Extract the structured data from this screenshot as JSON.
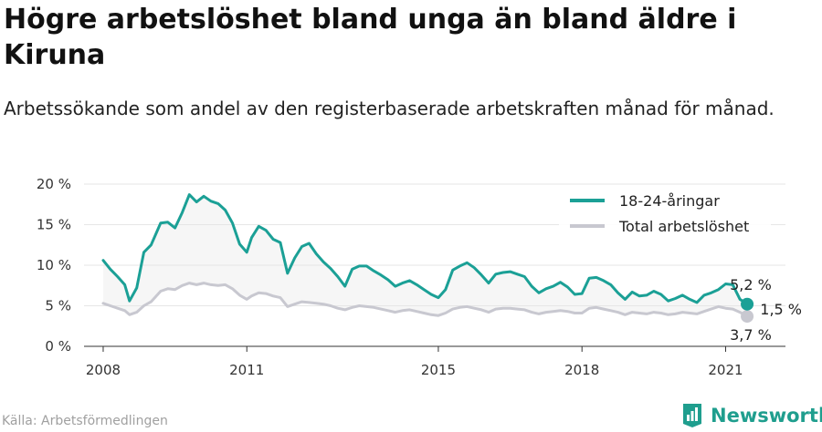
{
  "title": "Högre arbetslöshet bland unga än bland äldre i Kiruna",
  "subtitle": "Arbetssökande som andel av den registerbaserade arbetskraften månad för månad.",
  "source": "Källa: Arbetsförmedlingen",
  "brand": {
    "name": "Newsworthy",
    "icon": "newsworthy-logo-icon",
    "color": "#1f9e8e"
  },
  "chart_data": {
    "type": "line",
    "x_ticks": [
      "2008",
      "2011",
      "2015",
      "2018",
      "2021"
    ],
    "y_ticks": [
      "0 %",
      "5 %",
      "10 %",
      "15 %",
      "20 %"
    ],
    "xlim": [
      2007.6,
      2022.25
    ],
    "ylim": [
      0,
      20
    ],
    "grid": "horizontal",
    "legend_position": "top-right",
    "series": [
      {
        "name": "18-24-åringar",
        "color": "#1ba096",
        "end_label": "5,2 %",
        "points": [
          [
            2008.0,
            10.6
          ],
          [
            2008.15,
            9.5
          ],
          [
            2008.3,
            8.6
          ],
          [
            2008.45,
            7.6
          ],
          [
            2008.55,
            5.6
          ],
          [
            2008.7,
            7.2
          ],
          [
            2008.85,
            11.6
          ],
          [
            2009.0,
            12.5
          ],
          [
            2009.2,
            15.2
          ],
          [
            2009.35,
            15.3
          ],
          [
            2009.5,
            14.6
          ],
          [
            2009.65,
            16.5
          ],
          [
            2009.8,
            18.7
          ],
          [
            2009.95,
            17.8
          ],
          [
            2010.1,
            18.5
          ],
          [
            2010.25,
            17.9
          ],
          [
            2010.4,
            17.6
          ],
          [
            2010.55,
            16.8
          ],
          [
            2010.7,
            15.2
          ],
          [
            2010.85,
            12.6
          ],
          [
            2011.0,
            11.6
          ],
          [
            2011.1,
            13.4
          ],
          [
            2011.25,
            14.8
          ],
          [
            2011.4,
            14.3
          ],
          [
            2011.55,
            13.2
          ],
          [
            2011.7,
            12.8
          ],
          [
            2011.85,
            9.0
          ],
          [
            2012.0,
            10.9
          ],
          [
            2012.15,
            12.3
          ],
          [
            2012.3,
            12.7
          ],
          [
            2012.45,
            11.4
          ],
          [
            2012.6,
            10.4
          ],
          [
            2012.75,
            9.6
          ],
          [
            2012.9,
            8.6
          ],
          [
            2013.05,
            7.4
          ],
          [
            2013.2,
            9.5
          ],
          [
            2013.35,
            9.9
          ],
          [
            2013.5,
            9.9
          ],
          [
            2013.65,
            9.3
          ],
          [
            2013.8,
            8.8
          ],
          [
            2013.95,
            8.2
          ],
          [
            2014.1,
            7.4
          ],
          [
            2014.25,
            7.8
          ],
          [
            2014.4,
            8.1
          ],
          [
            2014.55,
            7.6
          ],
          [
            2014.7,
            7.0
          ],
          [
            2014.85,
            6.4
          ],
          [
            2015.0,
            6.0
          ],
          [
            2015.15,
            7.0
          ],
          [
            2015.3,
            9.4
          ],
          [
            2015.45,
            9.9
          ],
          [
            2015.6,
            10.3
          ],
          [
            2015.75,
            9.7
          ],
          [
            2015.9,
            8.8
          ],
          [
            2016.05,
            7.8
          ],
          [
            2016.2,
            8.9
          ],
          [
            2016.35,
            9.1
          ],
          [
            2016.5,
            9.2
          ],
          [
            2016.65,
            8.9
          ],
          [
            2016.8,
            8.6
          ],
          [
            2016.95,
            7.4
          ],
          [
            2017.1,
            6.6
          ],
          [
            2017.25,
            7.1
          ],
          [
            2017.4,
            7.4
          ],
          [
            2017.55,
            7.9
          ],
          [
            2017.7,
            7.3
          ],
          [
            2017.85,
            6.4
          ],
          [
            2018.0,
            6.5
          ],
          [
            2018.15,
            8.4
          ],
          [
            2018.3,
            8.5
          ],
          [
            2018.45,
            8.1
          ],
          [
            2018.6,
            7.6
          ],
          [
            2018.75,
            6.6
          ],
          [
            2018.9,
            5.8
          ],
          [
            2019.05,
            6.7
          ],
          [
            2019.2,
            6.2
          ],
          [
            2019.35,
            6.3
          ],
          [
            2019.5,
            6.8
          ],
          [
            2019.65,
            6.4
          ],
          [
            2019.8,
            5.6
          ],
          [
            2019.95,
            5.9
          ],
          [
            2020.1,
            6.3
          ],
          [
            2020.25,
            5.8
          ],
          [
            2020.4,
            5.4
          ],
          [
            2020.55,
            6.3
          ],
          [
            2020.7,
            6.6
          ],
          [
            2020.85,
            7.0
          ],
          [
            2021.0,
            7.7
          ],
          [
            2021.15,
            7.6
          ],
          [
            2021.3,
            5.8
          ],
          [
            2021.45,
            5.2
          ]
        ]
      },
      {
        "name": "Total arbetslöshet",
        "color": "#c8c8d0",
        "end_label": "3,7 %",
        "points": [
          [
            2008.0,
            5.3
          ],
          [
            2008.15,
            5.0
          ],
          [
            2008.3,
            4.7
          ],
          [
            2008.45,
            4.4
          ],
          [
            2008.55,
            3.9
          ],
          [
            2008.7,
            4.2
          ],
          [
            2008.85,
            5.0
          ],
          [
            2009.0,
            5.5
          ],
          [
            2009.2,
            6.8
          ],
          [
            2009.35,
            7.1
          ],
          [
            2009.5,
            7.0
          ],
          [
            2009.65,
            7.5
          ],
          [
            2009.8,
            7.8
          ],
          [
            2009.95,
            7.6
          ],
          [
            2010.1,
            7.8
          ],
          [
            2010.25,
            7.6
          ],
          [
            2010.4,
            7.5
          ],
          [
            2010.55,
            7.6
          ],
          [
            2010.7,
            7.1
          ],
          [
            2010.85,
            6.3
          ],
          [
            2011.0,
            5.8
          ],
          [
            2011.1,
            6.2
          ],
          [
            2011.25,
            6.6
          ],
          [
            2011.4,
            6.5
          ],
          [
            2011.55,
            6.2
          ],
          [
            2011.7,
            6.0
          ],
          [
            2011.85,
            4.9
          ],
          [
            2012.0,
            5.2
          ],
          [
            2012.15,
            5.5
          ],
          [
            2012.3,
            5.4
          ],
          [
            2012.45,
            5.3
          ],
          [
            2012.6,
            5.2
          ],
          [
            2012.75,
            5.0
          ],
          [
            2012.9,
            4.7
          ],
          [
            2013.05,
            4.5
          ],
          [
            2013.2,
            4.8
          ],
          [
            2013.35,
            5.0
          ],
          [
            2013.5,
            4.9
          ],
          [
            2013.65,
            4.8
          ],
          [
            2013.8,
            4.6
          ],
          [
            2013.95,
            4.4
          ],
          [
            2014.1,
            4.2
          ],
          [
            2014.25,
            4.4
          ],
          [
            2014.4,
            4.5
          ],
          [
            2014.55,
            4.3
          ],
          [
            2014.7,
            4.1
          ],
          [
            2014.85,
            3.9
          ],
          [
            2015.0,
            3.8
          ],
          [
            2015.15,
            4.1
          ],
          [
            2015.3,
            4.6
          ],
          [
            2015.45,
            4.8
          ],
          [
            2015.6,
            4.9
          ],
          [
            2015.75,
            4.7
          ],
          [
            2015.9,
            4.5
          ],
          [
            2016.05,
            4.2
          ],
          [
            2016.2,
            4.6
          ],
          [
            2016.35,
            4.7
          ],
          [
            2016.5,
            4.7
          ],
          [
            2016.65,
            4.6
          ],
          [
            2016.8,
            4.5
          ],
          [
            2016.95,
            4.2
          ],
          [
            2017.1,
            4.0
          ],
          [
            2017.25,
            4.2
          ],
          [
            2017.4,
            4.3
          ],
          [
            2017.55,
            4.4
          ],
          [
            2017.7,
            4.3
          ],
          [
            2017.85,
            4.1
          ],
          [
            2018.0,
            4.1
          ],
          [
            2018.15,
            4.7
          ],
          [
            2018.3,
            4.8
          ],
          [
            2018.45,
            4.6
          ],
          [
            2018.6,
            4.4
          ],
          [
            2018.75,
            4.2
          ],
          [
            2018.9,
            3.9
          ],
          [
            2019.05,
            4.2
          ],
          [
            2019.2,
            4.1
          ],
          [
            2019.35,
            4.0
          ],
          [
            2019.5,
            4.2
          ],
          [
            2019.65,
            4.1
          ],
          [
            2019.8,
            3.9
          ],
          [
            2019.95,
            4.0
          ],
          [
            2020.1,
            4.2
          ],
          [
            2020.25,
            4.1
          ],
          [
            2020.4,
            4.0
          ],
          [
            2020.55,
            4.3
          ],
          [
            2020.7,
            4.6
          ],
          [
            2020.85,
            4.9
          ],
          [
            2021.0,
            4.7
          ],
          [
            2021.15,
            4.6
          ],
          [
            2021.3,
            4.2
          ],
          [
            2021.45,
            3.7
          ]
        ]
      }
    ],
    "difference_label": "1,5 %"
  }
}
